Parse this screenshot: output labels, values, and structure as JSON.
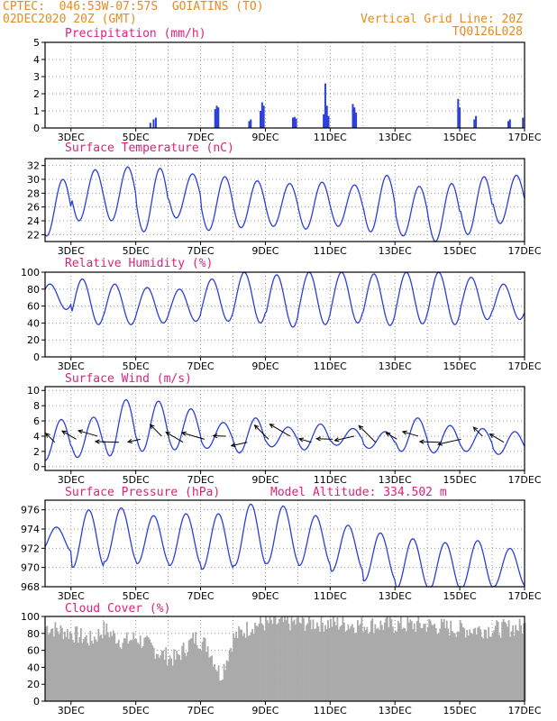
{
  "header": {
    "line1": "CPTEC:  046:53W-07:57S  GOIATINS (TO)",
    "line2": "02DEC2020 20Z (GMT)",
    "right1": "Vertical Grid Line: 20Z",
    "right2": "TQ0126L028"
  },
  "colors": {
    "header": "#e8891e",
    "title": "#e0207a",
    "line": "#2b3fd9",
    "cloud": "#aaaaaa",
    "grid": "#999999"
  },
  "x_tick_labels": [
    "3DEC",
    "5DEC",
    "7DEC",
    "9DEC",
    "11DEC",
    "13DEC",
    "15DEC",
    "17DEC"
  ],
  "chart_data": [
    {
      "type": "bar",
      "title": "Precipitation (mm/h)",
      "ylim": [
        0,
        5
      ],
      "yticks": [
        0,
        1,
        2,
        3,
        4,
        5
      ],
      "x_range_days": [
        2.2,
        17.0
      ],
      "spikes": [
        {
          "x": 5.45,
          "y": 0.3
        },
        {
          "x": 5.55,
          "y": 0.5
        },
        {
          "x": 5.62,
          "y": 0.6
        },
        {
          "x": 7.45,
          "y": 1.1
        },
        {
          "x": 7.5,
          "y": 1.3
        },
        {
          "x": 7.55,
          "y": 1.2
        },
        {
          "x": 8.5,
          "y": 0.4
        },
        {
          "x": 8.55,
          "y": 0.5
        },
        {
          "x": 8.85,
          "y": 1.0
        },
        {
          "x": 8.9,
          "y": 1.5
        },
        {
          "x": 8.95,
          "y": 1.3
        },
        {
          "x": 9.85,
          "y": 0.6
        },
        {
          "x": 9.9,
          "y": 0.65
        },
        {
          "x": 9.95,
          "y": 0.55
        },
        {
          "x": 10.8,
          "y": 0.8
        },
        {
          "x": 10.85,
          "y": 2.6
        },
        {
          "x": 10.9,
          "y": 1.3
        },
        {
          "x": 10.95,
          "y": 0.7
        },
        {
          "x": 11.7,
          "y": 1.4
        },
        {
          "x": 11.75,
          "y": 1.2
        },
        {
          "x": 11.8,
          "y": 0.9
        },
        {
          "x": 14.95,
          "y": 1.7
        },
        {
          "x": 15.0,
          "y": 1.2
        },
        {
          "x": 15.45,
          "y": 0.5
        },
        {
          "x": 15.5,
          "y": 0.7
        },
        {
          "x": 16.5,
          "y": 0.4
        },
        {
          "x": 16.55,
          "y": 0.5
        },
        {
          "x": 16.95,
          "y": 0.6
        }
      ]
    },
    {
      "type": "line",
      "title": "Surface Temperature (nC)",
      "ylim": [
        21,
        33
      ],
      "yticks": [
        22,
        24,
        26,
        28,
        30,
        32
      ],
      "daily_max": [
        30.0,
        31.4,
        31.8,
        31.6,
        30.8,
        30.4,
        29.8,
        29.4,
        29.6,
        29.2,
        30.6,
        29.0,
        29.4,
        30.4,
        30.6,
        29.4
      ],
      "daily_min": [
        21.8,
        24.0,
        24.0,
        22.4,
        24.4,
        22.6,
        23.0,
        23.2,
        22.8,
        23.2,
        22.4,
        21.8,
        21.0,
        22.0,
        23.6,
        24.0
      ]
    },
    {
      "type": "line",
      "title": "Relative Humidity (%)",
      "ylim": [
        0,
        100
      ],
      "yticks": [
        0,
        20,
        40,
        60,
        80,
        100
      ],
      "daily_max": [
        86,
        92,
        86,
        82,
        80,
        92,
        100,
        97,
        100,
        100,
        98,
        100,
        100,
        94,
        86,
        72
      ],
      "daily_min": [
        56,
        38,
        38,
        40,
        42,
        42,
        40,
        35,
        38,
        40,
        37,
        39,
        38,
        44,
        44,
        52
      ]
    },
    {
      "type": "line",
      "title": "Surface Wind (m/s)",
      "ylim": [
        -0.5,
        10.5
      ],
      "yticks": [
        0,
        2,
        4,
        6,
        8,
        10
      ],
      "daily_max": [
        6.2,
        6.5,
        8.8,
        8.6,
        7.6,
        5.8,
        6.4,
        5.2,
        5.6,
        5.0,
        4.6,
        6.4,
        5.4,
        5.0,
        4.6,
        5.2
      ],
      "daily_min": [
        0.8,
        1.2,
        1.4,
        2.0,
        2.2,
        2.4,
        1.8,
        2.6,
        2.2,
        2.8,
        2.4,
        2.0,
        1.8,
        2.0,
        1.6,
        2.2
      ]
    },
    {
      "type": "line",
      "title": "Surface Pressure (hPa)",
      "annotation": "Model Altitude: 334.502 m",
      "ylim": [
        968,
        977
      ],
      "yticks": [
        968,
        970,
        972,
        974,
        976
      ],
      "daily_max": [
        974.2,
        976.0,
        976.2,
        975.4,
        975.6,
        975.6,
        976.6,
        976.4,
        975.4,
        974.4,
        973.6,
        973.0,
        972.6,
        972.8,
        972.0,
        972.0
      ],
      "daily_min": [
        971.6,
        970.0,
        970.6,
        970.4,
        970.2,
        969.8,
        970.2,
        970.4,
        970.2,
        969.6,
        968.6,
        967.8,
        967.6,
        967.8,
        968.0,
        968.6
      ]
    },
    {
      "type": "bar",
      "title": "Cloud Cover (%)",
      "ylim": [
        0,
        100
      ],
      "yticks": [
        0,
        20,
        40,
        60,
        80,
        100
      ],
      "profile_days": [
        2.2,
        3.0,
        3.6,
        4.0,
        4.6,
        5.0,
        5.8,
        6.2,
        6.8,
        7.2,
        7.6,
        8.0,
        8.6,
        9.0,
        10.0,
        11.0,
        12.0,
        13.0,
        14.0,
        15.0,
        16.0,
        17.0
      ],
      "profile_values": [
        88,
        80,
        72,
        85,
        70,
        75,
        55,
        50,
        75,
        65,
        30,
        75,
        90,
        92,
        93,
        92,
        90,
        90,
        90,
        85,
        85,
        88
      ]
    }
  ]
}
